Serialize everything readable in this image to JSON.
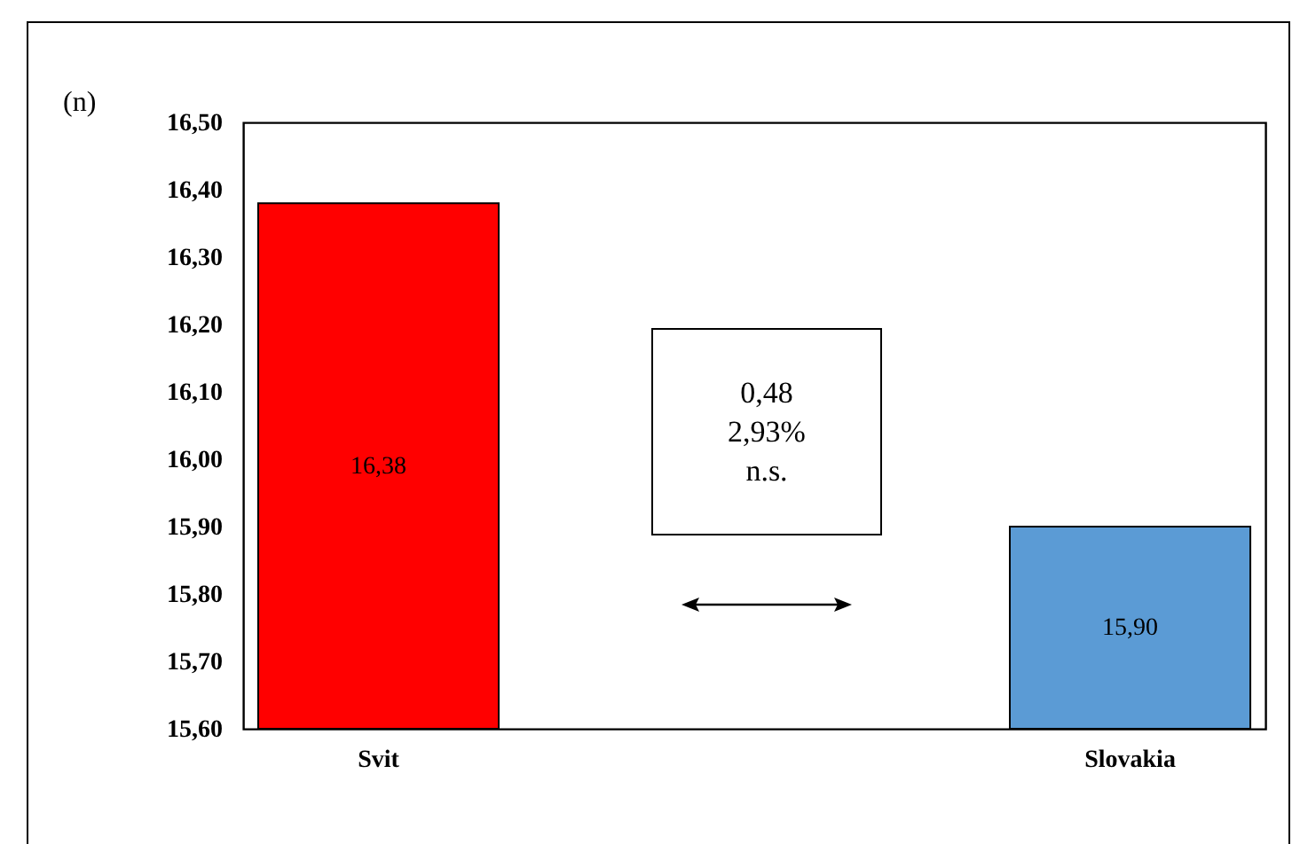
{
  "chart_data": {
    "type": "bar",
    "ylabel": "(n)",
    "categories": [
      "Svit",
      "Slovakia"
    ],
    "values": [
      16.38,
      15.9
    ],
    "colors": [
      "#ff0000",
      "#5b9bd5"
    ],
    "value_labels": [
      "16,38",
      "15,90"
    ],
    "ylim": [
      15.6,
      16.5
    ],
    "yticks": [
      {
        "value": 15.6,
        "label": "15,60"
      },
      {
        "value": 15.7,
        "label": "15,70"
      },
      {
        "value": 15.8,
        "label": "15,80"
      },
      {
        "value": 15.9,
        "label": "15,90"
      },
      {
        "value": 16.0,
        "label": "16,00"
      },
      {
        "value": 16.1,
        "label": "16,10"
      },
      {
        "value": 16.2,
        "label": "16,20"
      },
      {
        "value": 16.3,
        "label": "16,30"
      },
      {
        "value": 16.4,
        "label": "16,40"
      },
      {
        "value": 16.5,
        "label": "16,50"
      }
    ],
    "annotations": [
      "0,48",
      "2,93%",
      "n.s."
    ],
    "grid": false,
    "legend": false
  }
}
